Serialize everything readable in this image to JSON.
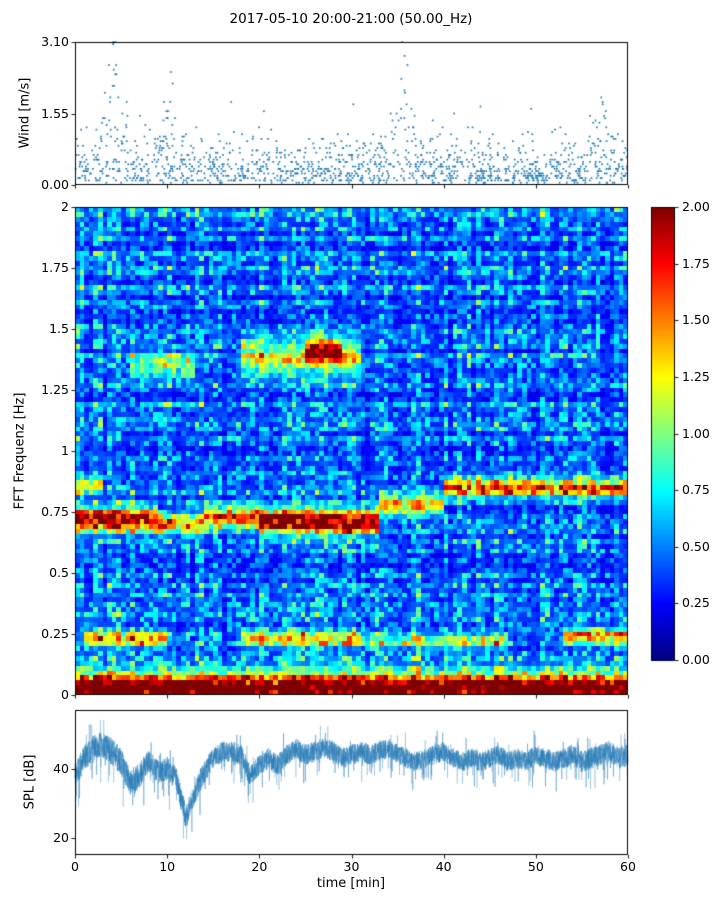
{
  "figure": {
    "title": "2017-05-10 20:00-21:00 (50.00_Hz)",
    "background": "#ffffff"
  },
  "axes": {
    "time": {
      "label": "time [min]",
      "lim": [
        0,
        60
      ],
      "ticks": [
        0,
        10,
        20,
        30,
        40,
        50,
        60
      ],
      "tick_labels": [
        "0",
        "10",
        "20",
        "30",
        "40",
        "50",
        "60"
      ]
    },
    "wind": {
      "label": "Wind [m/s]",
      "lim": [
        0,
        3.1
      ],
      "ticks": [
        0,
        1.55,
        3.1
      ],
      "tick_labels": [
        "0.00",
        "1.55",
        "3.10"
      ]
    },
    "fft": {
      "label": "FFT Frequenz [Hz]",
      "lim": [
        0,
        2
      ],
      "ticks": [
        0,
        0.25,
        0.5,
        0.75,
        1,
        1.25,
        1.5,
        1.75,
        2
      ],
      "tick_labels": [
        "0",
        "0.25",
        "0.5",
        "0.75",
        "1",
        "1.25",
        "1.5",
        "1.75",
        "2"
      ]
    },
    "spl": {
      "label": "SPL [dB]",
      "lim": [
        15,
        57
      ],
      "ticks": [
        20,
        40
      ],
      "tick_labels": [
        "20",
        "40"
      ]
    },
    "colorbar": {
      "lim": [
        0,
        2
      ],
      "ticks": [
        0,
        0.25,
        0.5,
        0.75,
        1,
        1.25,
        1.5,
        1.75,
        2
      ],
      "tick_labels": [
        "0.00",
        "0.25",
        "0.50",
        "0.75",
        "1.00",
        "1.25",
        "1.50",
        "1.75",
        "2.00"
      ]
    }
  },
  "colors": {
    "scatter_marker": "#1f77b4",
    "spl_line": "#1f77b4",
    "axis": "#000000",
    "colormap": "jet"
  },
  "chart_data": [
    {
      "type": "scatter",
      "name": "wind-speed",
      "ylabel": "Wind [m/s]",
      "xlim": [
        0,
        60
      ],
      "ylim": [
        0,
        3.1
      ],
      "marker_color": "#1f77b4",
      "marker_size": 1.7,
      "n_points": 1400,
      "y_quantization": 0.05,
      "gust_times": [
        3.8,
        4.3,
        10.4,
        35.3,
        36.0,
        57.2
      ],
      "peak_points": [
        [
          4.1,
          3.08
        ],
        [
          3.7,
          2.6
        ],
        [
          4.5,
          2.4
        ],
        [
          10.4,
          2.45
        ],
        [
          10.6,
          2.2
        ],
        [
          35.4,
          2.3
        ],
        [
          35.8,
          2.0
        ],
        [
          30.2,
          1.75
        ],
        [
          57.1,
          1.9
        ],
        [
          20.5,
          1.6
        ],
        [
          44.0,
          1.7
        ],
        [
          49.5,
          1.65
        ]
      ]
    },
    {
      "type": "heatmap",
      "name": "fft-spectrogram",
      "ylabel": "FFT Frequenz [Hz]",
      "xlim": [
        0,
        60
      ],
      "ylim": [
        0,
        2
      ],
      "clim": [
        0,
        2
      ],
      "colormap": "jet",
      "colorbar_ticks": [
        0,
        0.25,
        0.5,
        0.75,
        1,
        1.25,
        1.5,
        1.75,
        2
      ],
      "grid": {
        "nx": 120,
        "ny": 100
      },
      "background_level": 0.3,
      "noise_level": 0.5,
      "bands": [
        {
          "freq": 0.02,
          "sigma": 0.025,
          "amp": 2.3,
          "t0": 0,
          "t1": 60
        },
        {
          "freq": 0.07,
          "sigma": 0.03,
          "amp": 0.9,
          "t0": 0,
          "t1": 60
        },
        {
          "freq": 0.23,
          "sigma": 0.022,
          "amp": 1.15,
          "t0": 1,
          "t1": 10
        },
        {
          "freq": 0.23,
          "sigma": 0.022,
          "amp": 1.0,
          "t0": 18,
          "t1": 31
        },
        {
          "freq": 0.22,
          "sigma": 0.018,
          "amp": 0.75,
          "t0": 31,
          "t1": 47
        },
        {
          "freq": 0.24,
          "sigma": 0.022,
          "amp": 1.25,
          "t0": 53,
          "t1": 60
        },
        {
          "freq": 0.72,
          "sigma": 0.032,
          "amp": 1.9,
          "t0": 0,
          "t1": 9
        },
        {
          "freq": 0.7,
          "sigma": 0.028,
          "amp": 1.15,
          "t0": 9,
          "t1": 14
        },
        {
          "freq": 0.73,
          "sigma": 0.03,
          "amp": 1.45,
          "t0": 14,
          "t1": 20
        },
        {
          "freq": 0.71,
          "sigma": 0.034,
          "amp": 2.1,
          "t0": 20,
          "t1": 33
        },
        {
          "freq": 0.78,
          "sigma": 0.03,
          "amp": 1.05,
          "t0": 33,
          "t1": 40
        },
        {
          "freq": 0.85,
          "sigma": 0.024,
          "amp": 1.35,
          "t0": 40,
          "t1": 60
        },
        {
          "freq": 0.86,
          "sigma": 0.02,
          "amp": 0.95,
          "t0": 0,
          "t1": 3
        },
        {
          "freq": 1.38,
          "sigma": 0.05,
          "amp": 0.85,
          "t0": 18,
          "t1": 31
        },
        {
          "freq": 1.41,
          "sigma": 0.03,
          "amp": 1.5,
          "t0": 25,
          "t1": 29
        },
        {
          "freq": 1.35,
          "sigma": 0.04,
          "amp": 0.6,
          "t0": 6,
          "t1": 13
        }
      ]
    },
    {
      "type": "line",
      "name": "spl-level",
      "ylabel": "SPL [dB]",
      "xlim": [
        0,
        60
      ],
      "ylim": [
        15,
        57
      ],
      "color": "#1f77b4",
      "linewidth": 0.7,
      "n_points": 3000,
      "envelope_t_step": 1,
      "envelope": [
        38,
        43,
        46,
        47,
        45,
        42,
        36,
        38,
        42,
        39,
        40,
        37,
        26,
        33,
        39,
        43,
        45,
        45,
        44,
        38,
        41,
        43,
        41,
        44,
        46,
        44,
        45,
        46,
        45,
        43,
        44,
        45,
        44,
        45,
        46,
        44,
        43,
        42,
        43,
        44,
        45,
        43,
        42,
        43,
        42,
        43,
        44,
        42,
        43,
        42,
        44,
        43,
        42,
        43,
        44,
        42,
        43,
        44,
        45,
        43,
        44
      ],
      "noise_amp": [
        [
          0,
          3.5
        ],
        [
          4,
          4
        ],
        [
          8,
          3.5
        ],
        [
          12,
          3.5
        ],
        [
          16,
          3
        ],
        [
          20,
          3
        ],
        [
          30,
          3
        ],
        [
          40,
          2.8
        ],
        [
          50,
          3
        ],
        [
          60,
          3.2
        ]
      ]
    }
  ]
}
